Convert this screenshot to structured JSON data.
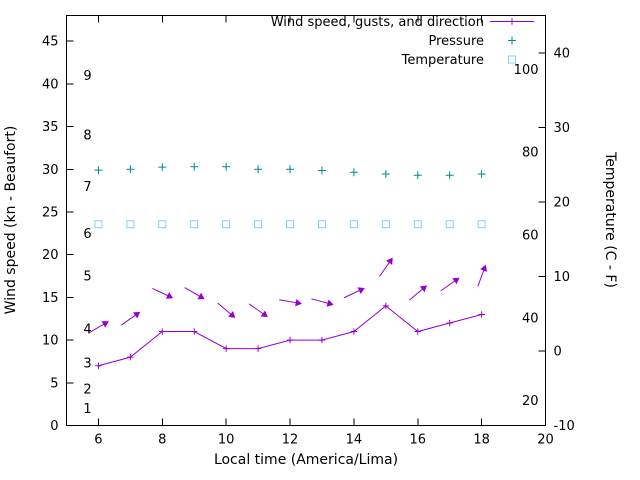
{
  "chart_data": {
    "type": "line",
    "title": "",
    "xlabel": "Local time (America/Lima)",
    "ylabel_left": "Wind speed (kn - Beaufort)",
    "ylabel_right": "Temperature (C - F)",
    "grid": false,
    "legend_position": "top-right-inside",
    "x_range": [
      5,
      20
    ],
    "x_ticks": [
      6,
      8,
      10,
      12,
      14,
      16,
      18,
      20
    ],
    "y_left_range": [
      0,
      48
    ],
    "y_left_ticks": [
      0,
      5,
      10,
      15,
      20,
      25,
      30,
      35,
      40,
      45
    ],
    "beaufort_ticks": [
      {
        "label": "1",
        "kn": 2
      },
      {
        "label": "2",
        "kn": 4.3
      },
      {
        "label": "3",
        "kn": 7.3
      },
      {
        "label": "4",
        "kn": 11.3
      },
      {
        "label": "5",
        "kn": 17.5
      },
      {
        "label": "6",
        "kn": 22.5
      },
      {
        "label": "7",
        "kn": 28
      },
      {
        "label": "8",
        "kn": 34
      },
      {
        "label": "9",
        "kn": 41
      }
    ],
    "y_right_range": [
      -10,
      45
    ],
    "y_right_ticks_c": [
      -10,
      0,
      10,
      20,
      30,
      40
    ],
    "fahrenheit_ticks": [
      20,
      40,
      60,
      80,
      100
    ],
    "x": [
      6,
      7,
      8,
      9,
      10,
      11,
      12,
      13,
      14,
      15,
      16,
      17,
      18
    ],
    "series": [
      {
        "name": "Wind speed, gusts, and direction",
        "axis": "left",
        "style": "line-plus-vectors",
        "color": "#9400d3",
        "values": [
          7,
          8,
          11,
          11,
          9,
          9,
          10,
          10,
          11,
          14,
          11,
          12,
          13
        ],
        "arrow_angles_deg": [
          30,
          35,
          -25,
          -30,
          -40,
          -35,
          -10,
          -15,
          25,
          55,
          40,
          35,
          70
        ],
        "arrow_offset_kn": 4.5
      },
      {
        "name": "Pressure",
        "axis": "left",
        "style": "plus",
        "color": "#008b8b",
        "values": [
          29.9,
          30.0,
          30.25,
          30.3,
          30.3,
          30.0,
          30.0,
          29.85,
          29.65,
          29.45,
          29.3,
          29.3,
          29.45
        ]
      },
      {
        "name": "Temperature",
        "axis": "right",
        "style": "open-square",
        "color": "#87ceeb",
        "values": [
          17,
          17,
          17,
          17,
          17,
          17,
          17,
          17,
          17,
          17,
          17,
          17,
          17
        ]
      }
    ]
  }
}
